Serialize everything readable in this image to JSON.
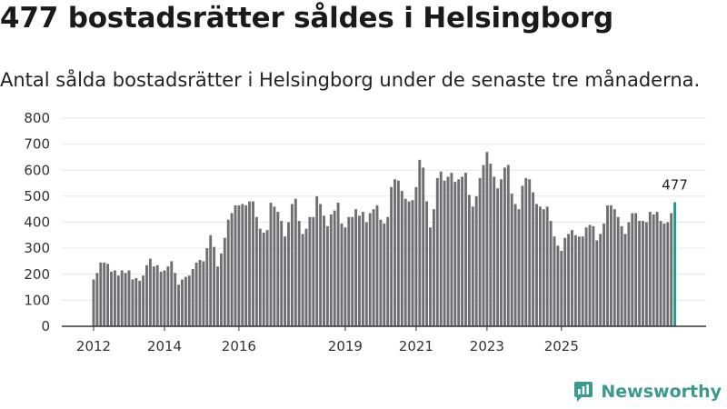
{
  "header": {
    "title": "477 bostadsrätter såldes i Helsingborg",
    "subtitle": "Antal sålda bostadsrätter i Helsingborg under de senaste tre månaderna."
  },
  "brand": {
    "name": "Newsworthy",
    "icon": "newsworthy-logo-icon",
    "color": "#3a9a8c"
  },
  "colors": {
    "bar": "#6e6e73",
    "highlight": "#1c9a8e",
    "grid": "#e6e6e6",
    "axis": "#333333"
  },
  "chart_data": {
    "type": "bar",
    "title": "Antal sålda bostadsrätter",
    "xlabel": "",
    "ylabel": "",
    "ylim": [
      0,
      800
    ],
    "yticks": [
      "0",
      "100",
      "200",
      "300",
      "400",
      "500",
      "600",
      "700",
      "800"
    ],
    "xticks": [
      "2012",
      "2014",
      "2016",
      "2019",
      "2021",
      "2023",
      "2025"
    ],
    "xtick_index": [
      0,
      20,
      41,
      71,
      91,
      111,
      132
    ],
    "last_label": "477",
    "values": [
      180,
      205,
      245,
      245,
      240,
      210,
      215,
      195,
      215,
      205,
      215,
      180,
      185,
      175,
      195,
      235,
      260,
      230,
      235,
      210,
      215,
      230,
      250,
      205,
      160,
      180,
      190,
      195,
      220,
      245,
      255,
      250,
      300,
      350,
      305,
      230,
      280,
      340,
      410,
      435,
      465,
      465,
      470,
      465,
      480,
      480,
      420,
      375,
      360,
      370,
      475,
      460,
      440,
      405,
      345,
      400,
      470,
      490,
      405,
      355,
      375,
      420,
      420,
      500,
      470,
      425,
      385,
      430,
      445,
      475,
      395,
      380,
      420,
      420,
      450,
      425,
      440,
      400,
      435,
      450,
      465,
      410,
      395,
      420,
      535,
      565,
      560,
      520,
      490,
      480,
      485,
      535,
      640,
      610,
      480,
      380,
      450,
      570,
      595,
      560,
      575,
      590,
      555,
      565,
      575,
      590,
      505,
      460,
      500,
      570,
      620,
      670,
      625,
      575,
      530,
      565,
      610,
      620,
      510,
      470,
      450,
      540,
      570,
      565,
      515,
      470,
      460,
      450,
      460,
      405,
      345,
      310,
      290,
      340,
      355,
      370,
      350,
      345,
      345,
      380,
      390,
      385,
      330,
      355,
      395,
      465,
      465,
      450,
      420,
      385,
      355,
      400,
      435,
      435,
      405,
      405,
      400,
      440,
      430,
      440,
      405,
      395,
      400,
      435,
      477
    ]
  }
}
